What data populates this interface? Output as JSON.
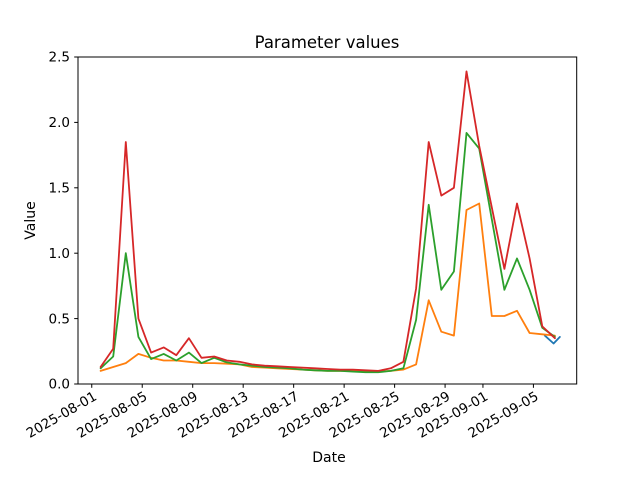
{
  "figure": {
    "title": "Parameter values",
    "xlabel": "Date",
    "ylabel": "Value"
  },
  "chart_data": {
    "type": "line",
    "title": "Parameter values",
    "xlabel": "Date",
    "ylabel": "Value",
    "grid": false,
    "legend": "none",
    "ylim": [
      0.0,
      2.5
    ],
    "y_ticks": [
      0.0,
      0.5,
      1.0,
      1.5,
      2.0,
      2.5
    ],
    "x_tick_labels": [
      "2025-08-01",
      "2025-08-05",
      "2025-08-09",
      "2025-08-13",
      "2025-08-17",
      "2025-08-21",
      "2025-08-25",
      "2025-08-29",
      "2025-09-01",
      "2025-09-05"
    ],
    "x_tick_day_index": [
      0,
      4,
      8,
      12,
      16,
      20,
      24,
      28,
      31,
      35
    ],
    "xlim_days": [
      -1.09,
      38.43
    ],
    "x_offset_days": 0.7,
    "dates": [
      "2025-08-01",
      "2025-08-02",
      "2025-08-03",
      "2025-08-04",
      "2025-08-05",
      "2025-08-06",
      "2025-08-07",
      "2025-08-08",
      "2025-08-09",
      "2025-08-10",
      "2025-08-11",
      "2025-08-12",
      "2025-08-13",
      "2025-08-14",
      "2025-08-15",
      "2025-08-16",
      "2025-08-17",
      "2025-08-18",
      "2025-08-19",
      "2025-08-20",
      "2025-08-21",
      "2025-08-22",
      "2025-08-23",
      "2025-08-24",
      "2025-08-25",
      "2025-08-26",
      "2025-08-27",
      "2025-08-28",
      "2025-08-29",
      "2025-08-30",
      "2025-08-31",
      "2025-09-01",
      "2025-09-02",
      "2025-09-03",
      "2025-09-04",
      "2025-09-05",
      "2025-09-06"
    ],
    "series": [
      {
        "name": "red",
        "color": "#d62728",
        "values": [
          0.13,
          0.27,
          1.85,
          0.5,
          0.24,
          0.28,
          0.22,
          0.35,
          0.2,
          0.21,
          0.18,
          0.17,
          0.15,
          0.14,
          0.135,
          0.13,
          0.125,
          0.12,
          0.115,
          0.11,
          0.11,
          0.105,
          0.1,
          0.12,
          0.17,
          0.73,
          1.85,
          1.44,
          1.5,
          2.39,
          1.82,
          1.35,
          0.88,
          1.38,
          0.96,
          0.44,
          0.35
        ]
      },
      {
        "name": "green",
        "color": "#2ca02c",
        "values": [
          0.12,
          0.21,
          1.0,
          0.36,
          0.19,
          0.23,
          0.18,
          0.24,
          0.16,
          0.2,
          0.165,
          0.15,
          0.14,
          0.13,
          0.125,
          0.12,
          0.11,
          0.105,
          0.1,
          0.1,
          0.095,
          0.09,
          0.09,
          0.1,
          0.12,
          0.49,
          1.37,
          0.72,
          0.86,
          1.92,
          1.8,
          1.26,
          0.72,
          0.96,
          0.72,
          0.43,
          0.36
        ]
      },
      {
        "name": "orange",
        "color": "#ff7f0e",
        "values": [
          0.1,
          0.13,
          0.16,
          0.23,
          0.2,
          0.18,
          0.18,
          0.17,
          0.16,
          0.16,
          0.155,
          0.15,
          0.13,
          0.125,
          0.12,
          0.115,
          0.11,
          0.105,
          0.1,
          0.1,
          0.1,
          0.095,
          0.095,
          0.1,
          0.11,
          0.15,
          0.64,
          0.4,
          0.37,
          1.33,
          1.38,
          0.52,
          0.52,
          0.56,
          0.39,
          0.38,
          0.37
        ]
      },
      {
        "name": "blue",
        "color": "#1f77b4",
        "note": "only tail visible at end of range; rest hidden behind other series",
        "x_days": [
          35.9,
          36.6,
          37.1
        ],
        "values": [
          0.37,
          0.31,
          0.36
        ]
      }
    ]
  }
}
